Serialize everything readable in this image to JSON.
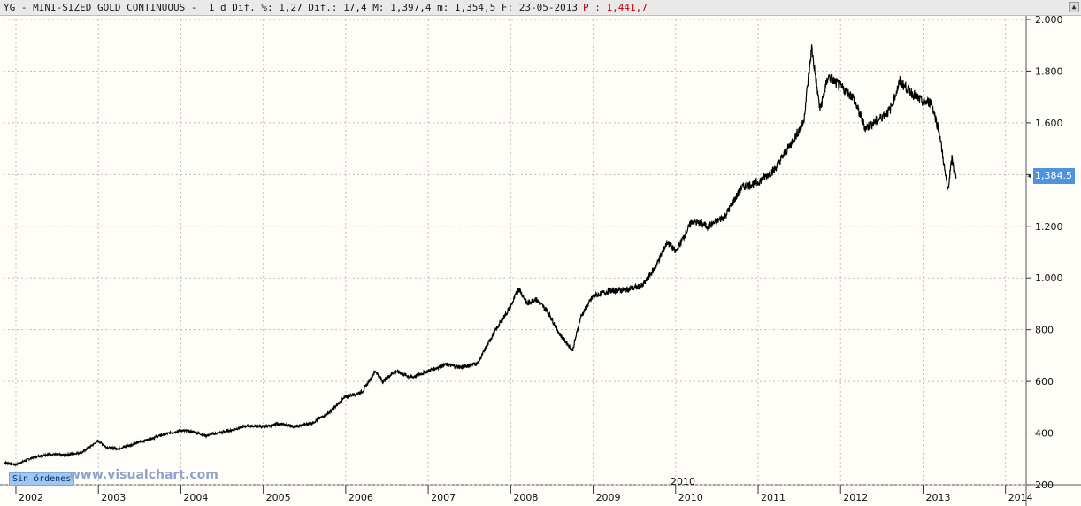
{
  "header": {
    "symbol_text": "YG - MINI-SIZED GOLD CONTINUOUS -  1 d Dif. %: 1,27 Dif.: 17,4 M: 1,397,4 m: 1,354,5 F: 23-05-2013",
    "price_text": "P : 1,441,7"
  },
  "footer": {
    "badge": "Sin órdenes",
    "watermark": "www.visualchart.com",
    "mid_label": "2010"
  },
  "last_price_label": "1,384.5",
  "colors": {
    "line": "#000000",
    "grid": "#c8c8c8",
    "last_price_bg": "#4f93dc",
    "price_text": "#c00000"
  },
  "chart_data": {
    "type": "line",
    "title": "YG - MINI-SIZED GOLD CONTINUOUS",
    "xlabel": "",
    "ylabel": "",
    "x_ticks": [
      "2002",
      "2003",
      "2004",
      "2005",
      "2006",
      "2007",
      "2008",
      "2009",
      "2010",
      "2011",
      "2012",
      "2013",
      "2014"
    ],
    "y_ticks": [
      "200",
      "400",
      "600",
      "800",
      "1.000",
      "1.200",
      "1.400",
      "1.600",
      "1.800",
      "2.000"
    ],
    "ylim": [
      200,
      2000
    ],
    "xlim": [
      2001.85,
      2014.25
    ],
    "grid": true,
    "series": [
      {
        "name": "",
        "x": [
          2001.85,
          2002.0,
          2002.2,
          2002.4,
          2002.6,
          2002.8,
          2003.0,
          2003.1,
          2003.25,
          2003.4,
          2003.6,
          2003.8,
          2004.0,
          2004.15,
          2004.3,
          2004.45,
          2004.6,
          2004.8,
          2005.0,
          2005.2,
          2005.4,
          2005.6,
          2005.8,
          2006.0,
          2006.2,
          2006.36,
          2006.45,
          2006.6,
          2006.8,
          2007.0,
          2007.2,
          2007.4,
          2007.6,
          2007.8,
          2008.0,
          2008.1,
          2008.2,
          2008.3,
          2008.45,
          2008.6,
          2008.75,
          2008.85,
          2009.0,
          2009.2,
          2009.4,
          2009.6,
          2009.75,
          2009.9,
          2010.0,
          2010.2,
          2010.4,
          2010.6,
          2010.8,
          2011.0,
          2011.2,
          2011.4,
          2011.55,
          2011.65,
          2011.75,
          2011.85,
          2012.0,
          2012.15,
          2012.3,
          2012.45,
          2012.6,
          2012.72,
          2012.85,
          2013.0,
          2013.1,
          2013.2,
          2013.27,
          2013.3,
          2013.35,
          2013.4
        ],
        "y": [
          287,
          278,
          305,
          318,
          315,
          325,
          370,
          345,
          340,
          355,
          375,
          395,
          410,
          405,
          390,
          400,
          410,
          428,
          425,
          435,
          425,
          440,
          480,
          540,
          560,
          640,
          600,
          640,
          615,
          640,
          665,
          655,
          670,
          790,
          890,
          960,
          900,
          920,
          870,
          780,
          720,
          850,
          930,
          950,
          955,
          970,
          1040,
          1140,
          1100,
          1220,
          1200,
          1240,
          1350,
          1370,
          1420,
          1520,
          1600,
          1890,
          1650,
          1780,
          1740,
          1700,
          1580,
          1610,
          1650,
          1760,
          1720,
          1680,
          1680,
          1560,
          1400,
          1340,
          1460,
          1384.5
        ]
      }
    ]
  }
}
